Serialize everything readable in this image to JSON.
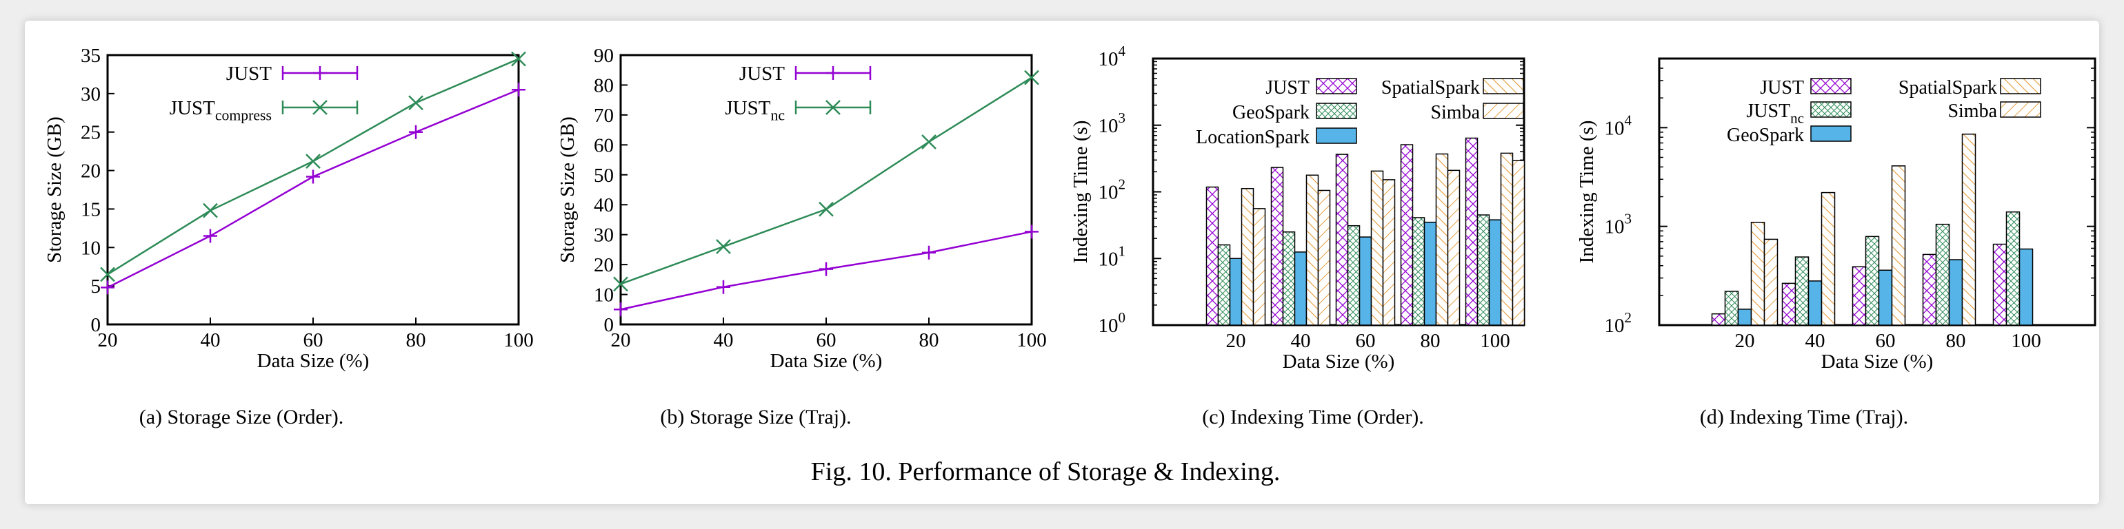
{
  "figure": {
    "caption": "Fig. 10.  Performance of Storage & Indexing."
  },
  "colors": {
    "just": "#9400d3",
    "justc": "#2e8b57",
    "orange": "#e5a34a",
    "blue": "#56b4e9"
  },
  "chart_data": [
    {
      "type": "line",
      "subcaption": "(a)  Storage Size (Order).",
      "xlabel": "Data Size (%)",
      "ylabel": "Storage Size (GB)",
      "x": [
        20,
        40,
        60,
        80,
        100
      ],
      "xlim": [
        20,
        100
      ],
      "ylim": [
        0,
        35
      ],
      "xticks": [
        "20",
        "40",
        "60",
        "80",
        "100"
      ],
      "yticks": [
        "0",
        "5",
        "10",
        "15",
        "20",
        "25",
        "30",
        "35"
      ],
      "legend_position": "top-left",
      "series": [
        {
          "name": "JUST",
          "sub": "",
          "marker": "plus",
          "values": [
            4.8,
            11.5,
            19.2,
            25.0,
            30.5
          ]
        },
        {
          "name": "JUST",
          "sub": "compress",
          "marker": "cross",
          "values": [
            6.5,
            14.8,
            21.2,
            28.8,
            34.5
          ]
        }
      ]
    },
    {
      "type": "line",
      "subcaption": "(b)  Storage Size (Traj).",
      "xlabel": "Data Size (%)",
      "ylabel": "Storage Size (GB)",
      "x": [
        20,
        40,
        60,
        80,
        100
      ],
      "xlim": [
        20,
        100
      ],
      "ylim": [
        0,
        90
      ],
      "xticks": [
        "20",
        "40",
        "60",
        "80",
        "100"
      ],
      "yticks": [
        "0",
        "10",
        "20",
        "30",
        "40",
        "50",
        "60",
        "70",
        "80",
        "90"
      ],
      "legend_position": "top-left",
      "series": [
        {
          "name": "JUST",
          "sub": "",
          "marker": "plus",
          "values": [
            5.0,
            12.5,
            18.5,
            24.0,
            31.0
          ]
        },
        {
          "name": "JUST",
          "sub": "nc",
          "marker": "cross",
          "values": [
            13.5,
            26.0,
            38.5,
            61.0,
            82.5
          ]
        }
      ]
    },
    {
      "type": "bar",
      "scale": "log",
      "subcaption": "(c)  Indexing Time (Order).",
      "xlabel": "Data Size (%)",
      "ylabel": "Indexing Time (s)",
      "categories": [
        "20",
        "40",
        "60",
        "80",
        "100"
      ],
      "ylim_exp": [
        0,
        4
      ],
      "ytick_exps": [
        "0",
        "1",
        "2",
        "3",
        "4"
      ],
      "legend_position": "top",
      "legend_cols": 2,
      "series": [
        {
          "name": "JUST",
          "sub": "",
          "pattern": "just",
          "values": [
            118,
            232,
            365,
            510,
            640
          ]
        },
        {
          "name": "GeoSpark",
          "sub": "",
          "pattern": "geo",
          "values": [
            16,
            25,
            31,
            41,
            45
          ]
        },
        {
          "name": "LocationSpark",
          "sub": "",
          "pattern": "loc",
          "values": [
            10,
            12.5,
            21,
            35,
            38
          ]
        },
        {
          "name": "SpatialSpark",
          "sub": "",
          "pattern": "spatial",
          "values": [
            112,
            178,
            205,
            370,
            380
          ]
        },
        {
          "name": "Simba",
          "sub": "",
          "pattern": "simba",
          "values": [
            56,
            105,
            152,
            210,
            295
          ]
        }
      ]
    },
    {
      "type": "bar",
      "scale": "log",
      "subcaption": "(d)  Indexing Time (Traj).",
      "xlabel": "Data Size (%)",
      "ylabel": "Indexing Time (s)",
      "categories": [
        "20",
        "40",
        "60",
        "80",
        "100"
      ],
      "ylim_exp": [
        2,
        4.7
      ],
      "ytick_exps": [
        "2",
        "3",
        "4"
      ],
      "legend_position": "top",
      "legend_cols": 2,
      "series": [
        {
          "name": "JUST",
          "sub": "",
          "pattern": "just",
          "values": [
            130,
            265,
            390,
            520,
            660
          ]
        },
        {
          "name": "JUST",
          "sub": "nc",
          "pattern": "geo",
          "values": [
            220,
            490,
            790,
            1050,
            1400
          ]
        },
        {
          "name": "GeoSpark",
          "sub": "",
          "pattern": "loc",
          "values": [
            145,
            280,
            360,
            460,
            590
          ]
        },
        {
          "name": "SpatialSpark",
          "sub": "",
          "pattern": "spatial",
          "values": [
            1100,
            2200,
            4100,
            8600,
            null
          ]
        },
        {
          "name": "Simba",
          "sub": "",
          "pattern": "simba",
          "values": [
            740,
            null,
            null,
            null,
            null
          ]
        }
      ]
    }
  ]
}
